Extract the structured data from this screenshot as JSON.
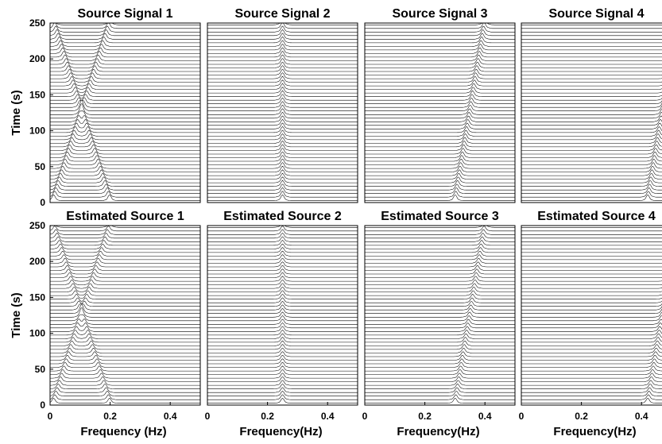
{
  "chart_data": {
    "type": "line",
    "style": "wiggle-trace time-frequency panels",
    "colors": {
      "trace": "#000000",
      "background": "#ffffff"
    },
    "grid": false,
    "legend": "none",
    "xlim": [
      0,
      0.5
    ],
    "ylim": [
      0,
      250
    ],
    "x_ticks": [
      "0",
      "0.2",
      "0.4"
    ],
    "y_ticks": [
      "0",
      "50",
      "100",
      "150",
      "200",
      "250"
    ],
    "trace_count": 50,
    "rows": [
      {
        "ylabel": "Time (s)",
        "panels": [
          {
            "title": "Source Signal 1",
            "components": [
              {
                "f0": 0.01,
                "f1": 0.2,
                "t0": 0,
                "t1": 250,
                "amp": 1.0
              },
              {
                "f0": 0.2,
                "f1": 0.01,
                "t0": 0,
                "t1": 250,
                "amp": 1.0
              }
            ]
          },
          {
            "title": "Source Signal 2",
            "components": [
              {
                "f0": 0.25,
                "f1": 0.25,
                "t0": 0,
                "t1": 250,
                "amp": 1.0
              }
            ]
          },
          {
            "title": "Source Signal 3",
            "components": [
              {
                "f0": 0.3,
                "f1": 0.4,
                "t0": 0,
                "t1": 250,
                "amp": 1.0
              }
            ]
          },
          {
            "title": "Source Signal 4",
            "components": [
              {
                "f0": 0.42,
                "f1": 0.52,
                "t0": 0,
                "t1": 250,
                "amp": 1.0
              }
            ]
          }
        ]
      },
      {
        "ylabel": "Time (s)",
        "panels": [
          {
            "title": "Estimated Source 1",
            "xlabel": "Frequency (Hz)",
            "components": [
              {
                "f0": 0.01,
                "f1": 0.2,
                "t0": 0,
                "t1": 250,
                "amp": 0.85
              },
              {
                "f0": 0.2,
                "f1": 0.01,
                "t0": 0,
                "t1": 250,
                "amp": 0.85
              }
            ]
          },
          {
            "title": "Estimated Source 2",
            "xlabel": "Frequency(Hz)",
            "components": [
              {
                "f0": 0.25,
                "f1": 0.25,
                "t0": 0,
                "t1": 250,
                "amp": 0.85
              }
            ]
          },
          {
            "title": "Estimated Source 3",
            "xlabel": "Frequency(Hz)",
            "components": [
              {
                "f0": 0.3,
                "f1": 0.4,
                "t0": 0,
                "t1": 250,
                "amp": 0.85
              }
            ]
          },
          {
            "title": "Estimated Source 4",
            "xlabel": "Frequency(Hz)",
            "components": [
              {
                "f0": 0.42,
                "f1": 0.52,
                "t0": 0,
                "t1": 250,
                "amp": 0.85
              }
            ]
          }
        ]
      }
    ]
  }
}
